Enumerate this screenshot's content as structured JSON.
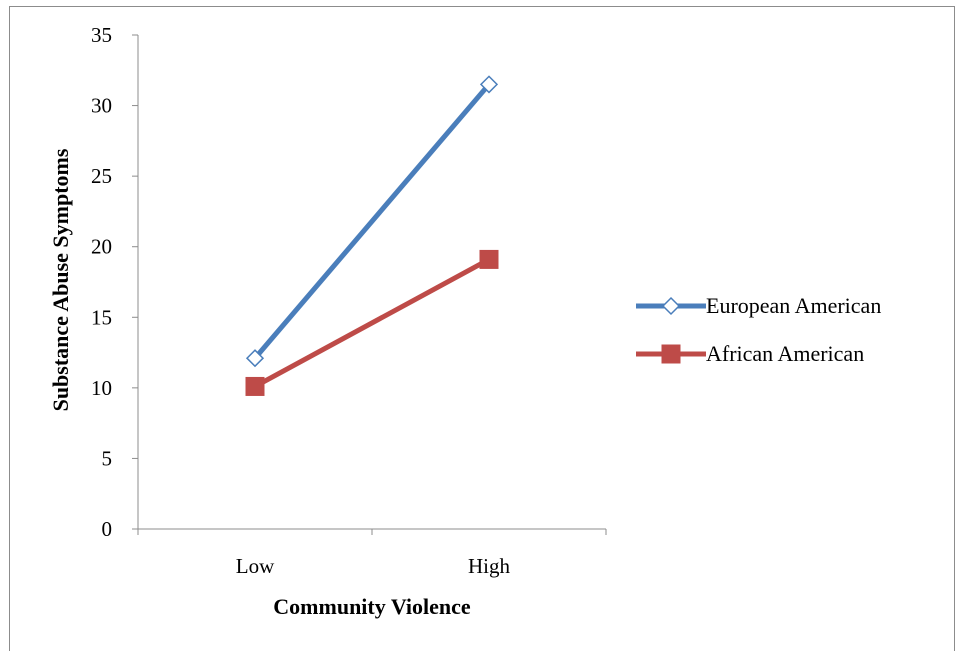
{
  "chart_data": {
    "type": "line",
    "categories": [
      "Low",
      "High"
    ],
    "series": [
      {
        "name": "European American",
        "values": [
          12.1,
          31.5
        ],
        "color": "#4a7ebb",
        "marker": "diamond-open"
      },
      {
        "name": "African American",
        "values": [
          10.1,
          19.1
        ],
        "color": "#be4b48",
        "marker": "square-filled"
      }
    ],
    "xlabel": "Community Violence",
    "ylabel": "Substance Abuse Symptoms",
    "ylim": [
      0,
      35
    ],
    "yticks": [
      "0",
      "5",
      "10",
      "15",
      "20",
      "25",
      "30",
      "35"
    ],
    "grid": false,
    "legend_position": "right"
  }
}
